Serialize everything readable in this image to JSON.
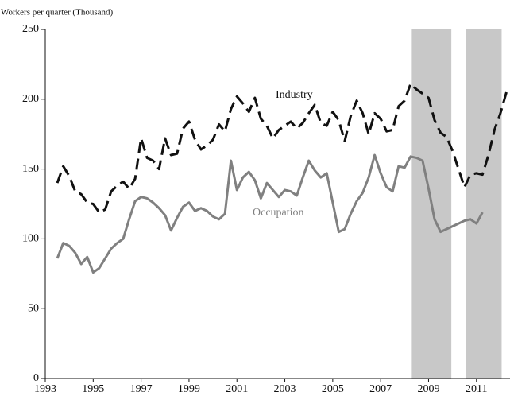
{
  "chart_data": {
    "type": "line",
    "y_label": "Workers per quarter (Thousand)",
    "annotations": [
      "Industry",
      "Occupation"
    ],
    "x": [
      1993.5,
      1993.75,
      1994,
      1994.25,
      1994.5,
      1994.75,
      1995,
      1995.25,
      1995.5,
      1995.75,
      1996,
      1996.25,
      1996.5,
      1996.75,
      1997,
      1997.25,
      1997.5,
      1997.75,
      1998,
      1998.25,
      1998.5,
      1998.75,
      1999,
      1999.25,
      1999.5,
      1999.75,
      2000,
      2000.25,
      2000.5,
      2000.75,
      2001,
      2001.25,
      2001.5,
      2001.75,
      2002,
      2002.25,
      2002.5,
      2002.75,
      2003,
      2003.25,
      2003.5,
      2003.75,
      2004,
      2004.25,
      2004.5,
      2004.75,
      2005,
      2005.25,
      2005.5,
      2005.75,
      2006,
      2006.25,
      2006.5,
      2006.75,
      2007,
      2007.25,
      2007.5,
      2007.75,
      2008,
      2008.25,
      2008.5,
      2008.75,
      2009,
      2009.25,
      2009.5,
      2009.75,
      2010,
      2010.25,
      2010.5,
      2010.75,
      2011,
      2011.25,
      2011.5,
      2011.75,
      2012,
      2012.25
    ],
    "series": [
      {
        "name": "Industry",
        "color": "#111111",
        "dashed": true,
        "values": [
          140,
          152,
          145,
          134,
          132,
          126,
          125,
          119,
          121,
          134,
          138,
          141,
          136,
          143,
          172,
          158,
          156,
          150,
          172,
          160,
          161,
          179,
          184,
          171,
          164,
          167,
          171,
          182,
          177,
          193,
          202,
          197,
          191,
          201,
          186,
          181,
          172,
          178,
          181,
          184,
          179,
          183,
          190,
          196,
          183,
          181,
          191,
          185,
          170,
          188,
          199,
          190,
          175,
          190,
          186,
          177,
          178,
          195,
          199,
          211,
          207,
          204,
          201,
          185,
          176,
          173,
          163,
          150,
          137,
          146,
          147,
          146,
          160,
          178,
          190,
          205
        ]
      },
      {
        "name": "Occupation",
        "color": "#808080",
        "dashed": false,
        "values": [
          86,
          97,
          95,
          90,
          82,
          87,
          76,
          79,
          86,
          93,
          97,
          100,
          114,
          127,
          130,
          129,
          126,
          122,
          117,
          106,
          115,
          123,
          126,
          120,
          122,
          120,
          116,
          114,
          118,
          156,
          135,
          144,
          148,
          142,
          129,
          140,
          135,
          130,
          135,
          134,
          131,
          144,
          156,
          149,
          144,
          147,
          126,
          105,
          107,
          118,
          127,
          133,
          144,
          160,
          147,
          137,
          134,
          152,
          151,
          159,
          158,
          156,
          136,
          114,
          105,
          107,
          109,
          111,
          113,
          114,
          111,
          119,
          null,
          null,
          null,
          null
        ]
      }
    ],
    "shaded_regions": [
      [
        2008.3,
        2009.95
      ],
      [
        2010.55,
        2012.05
      ]
    ],
    "shade_color": "#c8c8c8",
    "xlim": [
      1993,
      2012.4
    ],
    "xticks": [
      1993,
      1995,
      1997,
      1999,
      2001,
      2003,
      2005,
      2007,
      2009,
      2011
    ],
    "ylim": [
      0,
      250
    ],
    "yticks": [
      0,
      50,
      100,
      150,
      200,
      250
    ],
    "grid": false
  }
}
